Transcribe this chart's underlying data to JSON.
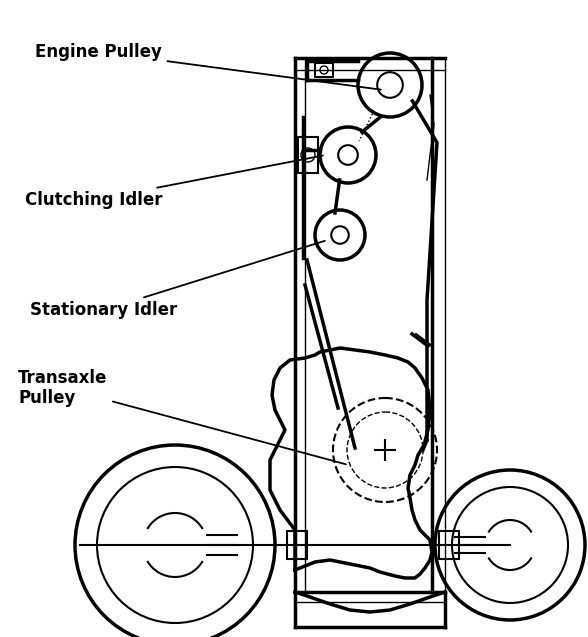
{
  "bg_color": "#ffffff",
  "line_color": "#000000",
  "labels": {
    "engine_pulley": "Engine Pulley",
    "clutching_idler": "Clutching Idler",
    "stationary_idler": "Stationary Idler",
    "transaxle_pulley": "Transaxle\nPulley"
  },
  "font_size": 12,
  "figsize": [
    5.88,
    6.37
  ],
  "dpi": 100
}
